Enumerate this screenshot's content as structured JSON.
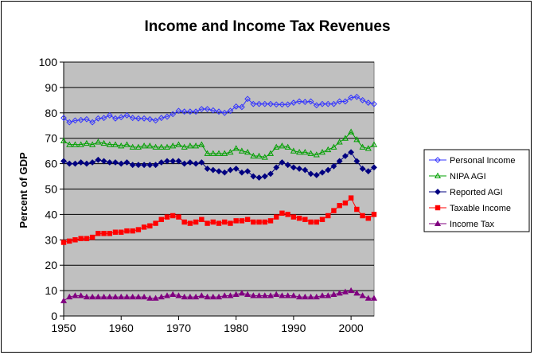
{
  "chart_data": {
    "type": "line",
    "title": "Income and Income Tax Revenues",
    "xlabel": "",
    "ylabel": "Percent of GDP",
    "xlim": [
      1950,
      2004
    ],
    "ylim": [
      0,
      100
    ],
    "x_ticks": [
      1950,
      1960,
      1970,
      1980,
      1990,
      2000
    ],
    "y_ticks": [
      0,
      10,
      20,
      30,
      40,
      50,
      60,
      70,
      80,
      90,
      100
    ],
    "grid": "horizontal",
    "legend": "right",
    "plot_background": "#c0c0c0",
    "x": [
      1950,
      1951,
      1952,
      1953,
      1954,
      1955,
      1956,
      1957,
      1958,
      1959,
      1960,
      1961,
      1962,
      1963,
      1964,
      1965,
      1966,
      1967,
      1968,
      1969,
      1970,
      1971,
      1972,
      1973,
      1974,
      1975,
      1976,
      1977,
      1978,
      1979,
      1980,
      1981,
      1982,
      1983,
      1984,
      1985,
      1986,
      1987,
      1988,
      1989,
      1990,
      1991,
      1992,
      1993,
      1994,
      1995,
      1996,
      1997,
      1998,
      1999,
      2000,
      2001,
      2002,
      2003,
      2004
    ],
    "series": [
      {
        "name": "Personal Income",
        "color": "#3333ff",
        "marker": "diamond-open",
        "values": [
          78,
          76.3,
          77,
          77.2,
          77.5,
          76.3,
          77.8,
          78,
          79,
          77.8,
          78.3,
          79,
          78,
          77.8,
          77.8,
          77.5,
          77,
          78,
          78.5,
          79.5,
          80.8,
          80.5,
          80.5,
          80.5,
          81.5,
          81.5,
          81,
          80.5,
          80,
          80.8,
          82.5,
          82.3,
          85.5,
          83.5,
          83.5,
          83.5,
          83.5,
          83.3,
          83.3,
          83.3,
          84,
          84.5,
          84.3,
          84.5,
          83,
          83.5,
          83.5,
          83.5,
          84.5,
          84.5,
          86,
          86.3,
          85,
          84,
          83.5
        ]
      },
      {
        "name": "NIPA AGI",
        "color": "#00a000",
        "marker": "triangle-open",
        "values": [
          69,
          67.5,
          67.5,
          67.5,
          68,
          67.5,
          68.5,
          68,
          67.5,
          67.5,
          67,
          67.5,
          66.5,
          66.5,
          67,
          67,
          66.5,
          66.5,
          66.5,
          67,
          67.5,
          66.5,
          67,
          67,
          67.5,
          64,
          64,
          64,
          64,
          64.5,
          66,
          65,
          64.5,
          63,
          63,
          62.5,
          64,
          66.5,
          67,
          66.5,
          65,
          64.5,
          64.5,
          64,
          63.5,
          64.5,
          65.5,
          66.5,
          68.5,
          70,
          72.5,
          69.5,
          66.5,
          66,
          67.5
        ]
      },
      {
        "name": "Reported AGI",
        "color": "#000080",
        "marker": "diamond",
        "values": [
          61,
          60,
          60,
          60.5,
          60,
          60.5,
          61.5,
          61,
          60.5,
          60.5,
          60,
          60.5,
          59.5,
          59.5,
          59.5,
          59.5,
          59.5,
          60.5,
          61,
          61,
          61,
          60,
          60.5,
          60,
          60.5,
          58,
          57.5,
          57,
          56.5,
          57.5,
          58,
          56.5,
          57,
          55,
          54.5,
          55,
          56,
          58.5,
          60.5,
          59.5,
          58.5,
          58,
          57.5,
          56,
          55.5,
          56.5,
          57.5,
          59,
          61,
          63,
          64.5,
          61,
          58,
          57,
          58.5
        ]
      },
      {
        "name": "Taxable Income",
        "color": "#ff0000",
        "marker": "square",
        "values": [
          29,
          29.5,
          30,
          30.5,
          30.5,
          31,
          32.5,
          32.5,
          32.5,
          33,
          33,
          33.5,
          33.5,
          34,
          35,
          35.5,
          36.5,
          38,
          39,
          39.5,
          39,
          37,
          36.5,
          37,
          38,
          36.5,
          37,
          36.5,
          37,
          36.5,
          37.5,
          37.5,
          38,
          37,
          37,
          37,
          37.5,
          39,
          40.5,
          40,
          39,
          38.5,
          38,
          37,
          37,
          38,
          39.5,
          41.5,
          43.5,
          44.5,
          46.5,
          42,
          39.5,
          38.5,
          40
        ]
      },
      {
        "name": "Income Tax",
        "color": "#800080",
        "marker": "triangle",
        "values": [
          6,
          7.5,
          8,
          8,
          7.5,
          7.5,
          7.5,
          7.5,
          7.5,
          7.5,
          7.5,
          7.5,
          7.5,
          7.5,
          7.5,
          7,
          7,
          7.5,
          8,
          8.5,
          8,
          7.5,
          7.5,
          7.5,
          8,
          7.5,
          7.5,
          7.5,
          8,
          8,
          8.5,
          9,
          8.5,
          8,
          8,
          8,
          8,
          8.5,
          8,
          8,
          8,
          7.5,
          7.5,
          7.5,
          7.5,
          8,
          8,
          8.5,
          9,
          9.5,
          10,
          9,
          8,
          7,
          7
        ]
      }
    ]
  }
}
